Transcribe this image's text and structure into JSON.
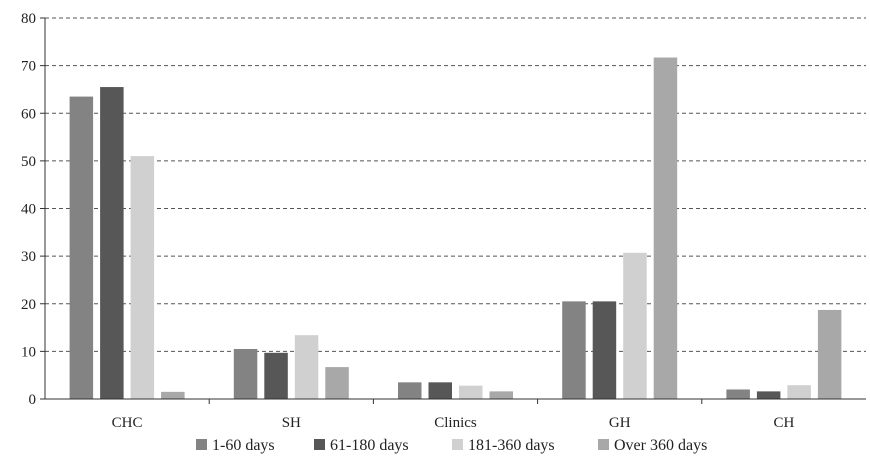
{
  "chart_data": {
    "type": "bar",
    "title": "",
    "xlabel": "",
    "ylabel": "",
    "ylim": [
      0,
      80
    ],
    "yticks": [
      0,
      10,
      20,
      30,
      40,
      50,
      60,
      70,
      80
    ],
    "grid": true,
    "legend_position": "bottom",
    "categories": [
      "CHC",
      "SH",
      "Clinics",
      "GH",
      "CH"
    ],
    "series": [
      {
        "name": "1-60 days",
        "color": "#838383",
        "values": [
          63.5,
          10.5,
          3.5,
          20.5,
          2.0
        ]
      },
      {
        "name": "61-180 days",
        "color": "#575757",
        "values": [
          65.5,
          9.7,
          3.5,
          20.5,
          1.6
        ]
      },
      {
        "name": "181-360 days",
        "color": "#d0d0d0",
        "values": [
          51.0,
          13.4,
          2.8,
          30.7,
          2.9
        ]
      },
      {
        "name": "Over 360 days",
        "color": "#a8a8a8",
        "values": [
          1.5,
          6.7,
          1.6,
          71.7,
          18.7
        ]
      }
    ]
  }
}
